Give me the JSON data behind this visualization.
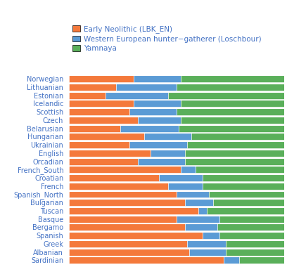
{
  "populations": [
    "Norwegian",
    "Lithuanian",
    "Estonian",
    "Icelandic",
    "Scottish",
    "Czech",
    "Belarusian",
    "Hungarian",
    "Ukrainian",
    "English",
    "Orcadian",
    "French_South",
    "Croatian",
    "French",
    "Spanish_North",
    "Bulgarian",
    "Tuscan",
    "Basque",
    "Bergamo",
    "Spanish",
    "Greek",
    "Albanian",
    "Sardinian"
  ],
  "early_neolithic": [
    0.3,
    0.22,
    0.17,
    0.3,
    0.28,
    0.32,
    0.24,
    0.35,
    0.28,
    0.38,
    0.32,
    0.52,
    0.42,
    0.46,
    0.5,
    0.54,
    0.6,
    0.5,
    0.54,
    0.62,
    0.55,
    0.56,
    0.72
  ],
  "whg": [
    0.22,
    0.28,
    0.29,
    0.22,
    0.22,
    0.2,
    0.27,
    0.22,
    0.27,
    0.16,
    0.22,
    0.07,
    0.2,
    0.16,
    0.15,
    0.13,
    0.04,
    0.2,
    0.15,
    0.08,
    0.18,
    0.17,
    0.07
  ],
  "yamnaya": [
    0.48,
    0.5,
    0.54,
    0.48,
    0.5,
    0.48,
    0.49,
    0.43,
    0.45,
    0.46,
    0.46,
    0.41,
    0.38,
    0.38,
    0.35,
    0.33,
    0.36,
    0.3,
    0.31,
    0.3,
    0.27,
    0.27,
    0.21
  ],
  "colors": {
    "early_neolithic": "#F4793B",
    "whg": "#5B9BD5",
    "yamnaya": "#5AAF5A"
  },
  "legend_labels": [
    "Early Neolithic (LBK_EN)",
    "Western European hunter−gatherer (Loschbour)",
    "Yamnaya"
  ],
  "figsize": [
    4.08,
    3.8
  ],
  "dpi": 100,
  "background": "#ffffff"
}
